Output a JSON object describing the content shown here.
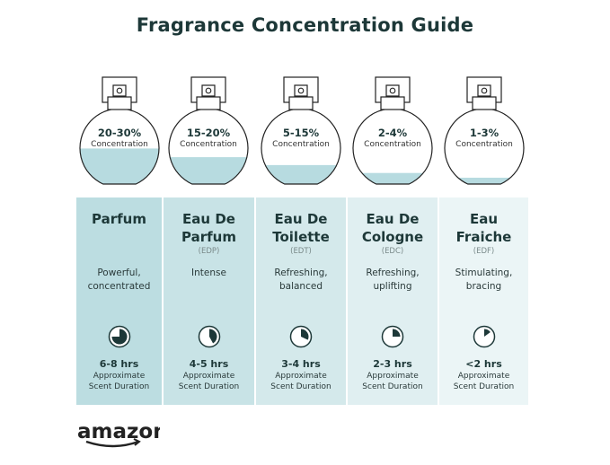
{
  "title": "Fragrance Concentration Guide",
  "colors": {
    "title": "#1d3838",
    "liquid": "#b7dbe0",
    "card_left": "#b9dce0",
    "card_right": "#eef6f7",
    "clock_fill": "#1d3838"
  },
  "types": [
    {
      "percent": "20-30%",
      "concentration_label": "Concentration",
      "fill_level": 0.45,
      "name_lines": [
        "Parfum"
      ],
      "abbr": "",
      "desc_lines": [
        "Powerful,",
        "concentrated"
      ],
      "clock_fraction": 0.75,
      "duration": "6-8 hrs",
      "duration_lines": [
        "Approximate",
        "Scent Duration"
      ],
      "bg": "#bcdde1"
    },
    {
      "percent": "15-20%",
      "concentration_label": "Concentration",
      "fill_level": 0.34,
      "name_lines": [
        "Eau De",
        "Parfum"
      ],
      "abbr": "(EDP)",
      "desc_lines": [
        "Intense"
      ],
      "clock_fraction": 0.42,
      "duration": "4-5 hrs",
      "duration_lines": [
        "Approximate",
        "Scent Duration"
      ],
      "bg": "#c8e3e6"
    },
    {
      "percent": "5-15%",
      "concentration_label": "Concentration",
      "fill_level": 0.24,
      "name_lines": [
        "Eau De",
        "Toilette"
      ],
      "abbr": "(EDT)",
      "desc_lines": [
        "Refreshing,",
        "balanced"
      ],
      "clock_fraction": 0.32,
      "duration": "3-4 hrs",
      "duration_lines": [
        "Approximate",
        "Scent Duration"
      ],
      "bg": "#d4e9eb"
    },
    {
      "percent": "2-4%",
      "concentration_label": "Concentration",
      "fill_level": 0.14,
      "name_lines": [
        "Eau De",
        "Cologne"
      ],
      "abbr": "(EDC)",
      "desc_lines": [
        "Refreshing,",
        "uplifting"
      ],
      "clock_fraction": 0.25,
      "duration": "2-3 hrs",
      "duration_lines": [
        "Approximate",
        "Scent Duration"
      ],
      "bg": "#e0eff1"
    },
    {
      "percent": "1-3%",
      "concentration_label": "Concentration",
      "fill_level": 0.08,
      "name_lines": [
        "Eau",
        "Fraiche"
      ],
      "abbr": "(EDF)",
      "desc_lines": [
        "Stimulating,",
        "bracing"
      ],
      "clock_fraction": 0.15,
      "duration": "<2 hrs",
      "duration_lines": [
        "Approximate",
        "Scent Duration"
      ],
      "bg": "#ebf5f6"
    }
  ],
  "logo": "amazon"
}
